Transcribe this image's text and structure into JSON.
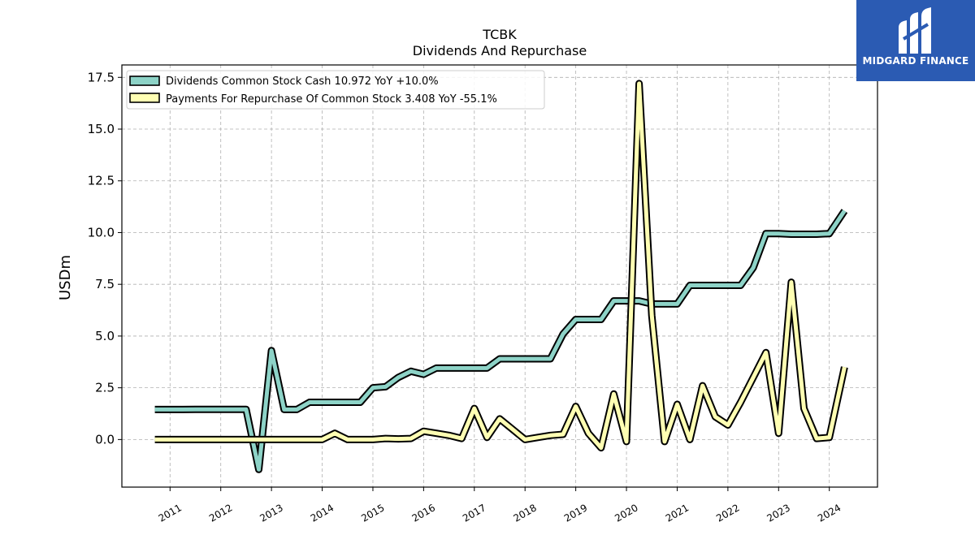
{
  "chart_data": {
    "type": "line",
    "title": "TCBK",
    "subtitle": "Dividends And Repurchase",
    "ylabel": "USDm",
    "xlim": [
      2010.05,
      2024.95
    ],
    "ylim": [
      -2.3,
      18.1
    ],
    "yticks": [
      0.0,
      2.5,
      5.0,
      7.5,
      10.0,
      12.5,
      15.0,
      17.5
    ],
    "ytick_labels": [
      "0.0",
      "2.5",
      "5.0",
      "7.5",
      "10.0",
      "12.5",
      "15.0",
      "17.5"
    ],
    "xticks": [
      2011,
      2012,
      2013,
      2014,
      2015,
      2016,
      2017,
      2018,
      2019,
      2020,
      2021,
      2022,
      2023,
      2024
    ],
    "xtick_labels": [
      "2011",
      "2012",
      "2013",
      "2014",
      "2015",
      "2016",
      "2017",
      "2018",
      "2019",
      "2020",
      "2021",
      "2022",
      "2023",
      "2024"
    ],
    "grid": true,
    "legend_position": "top-left",
    "series": [
      {
        "name": "Dividends Common Stock Cash",
        "legend_label": "Dividends Common Stock Cash  10.972 YoY +10.0%",
        "color": "#8dd3c7",
        "x": [
          2010.7,
          2011.0,
          2011.25,
          2011.5,
          2011.75,
          2012.0,
          2012.25,
          2012.5,
          2012.75,
          2013.0,
          2013.25,
          2013.5,
          2013.75,
          2014.0,
          2014.25,
          2014.5,
          2014.75,
          2015.0,
          2015.25,
          2015.5,
          2015.75,
          2016.0,
          2016.25,
          2016.5,
          2016.75,
          2017.0,
          2017.25,
          2017.5,
          2017.75,
          2018.0,
          2018.25,
          2018.5,
          2018.75,
          2019.0,
          2019.25,
          2019.5,
          2019.75,
          2020.0,
          2020.25,
          2020.5,
          2020.75,
          2021.0,
          2021.25,
          2021.5,
          2021.75,
          2022.0,
          2022.25,
          2022.5,
          2022.75,
          2023.0,
          2023.25,
          2023.5,
          2023.75,
          2024.0,
          2024.3
        ],
        "values": [
          1.45,
          1.45,
          1.45,
          1.46,
          1.46,
          1.46,
          1.46,
          1.46,
          -1.45,
          4.3,
          1.45,
          1.45,
          1.8,
          1.8,
          1.8,
          1.8,
          1.8,
          2.5,
          2.55,
          3.0,
          3.3,
          3.15,
          3.45,
          3.45,
          3.45,
          3.45,
          3.45,
          3.9,
          3.9,
          3.9,
          3.9,
          3.9,
          5.1,
          5.8,
          5.8,
          5.8,
          6.7,
          6.7,
          6.7,
          6.55,
          6.55,
          6.55,
          7.45,
          7.45,
          7.45,
          7.45,
          7.45,
          8.3,
          9.95,
          9.95,
          9.92,
          9.92,
          9.92,
          9.95,
          11.05
        ]
      },
      {
        "name": "Payments For Repurchase Of Common Stock",
        "legend_label": "Payments For Repurchase Of Common Stock  3.408 YoY -55.1%",
        "color": "#ffffb3",
        "x": [
          2010.7,
          2011.0,
          2011.25,
          2011.5,
          2011.75,
          2012.0,
          2012.25,
          2012.5,
          2012.75,
          2013.0,
          2013.25,
          2013.5,
          2013.75,
          2014.0,
          2014.25,
          2014.5,
          2014.75,
          2015.0,
          2015.25,
          2015.5,
          2015.75,
          2016.0,
          2016.25,
          2016.5,
          2016.75,
          2017.0,
          2017.25,
          2017.5,
          2017.75,
          2018.0,
          2018.25,
          2018.5,
          2018.75,
          2019.0,
          2019.25,
          2019.5,
          2019.75,
          2020.0,
          2020.25,
          2020.5,
          2020.75,
          2021.0,
          2021.25,
          2021.5,
          2021.75,
          2022.0,
          2022.25,
          2022.5,
          2022.75,
          2023.0,
          2023.25,
          2023.5,
          2023.75,
          2024.0,
          2024.3
        ],
        "values": [
          0.0,
          0.0,
          0.0,
          0.0,
          0.0,
          0.0,
          0.0,
          0.0,
          0.0,
          0.0,
          0.0,
          0.0,
          0.0,
          0.0,
          0.3,
          0.0,
          0.0,
          0.0,
          0.05,
          0.03,
          0.05,
          0.4,
          0.3,
          0.2,
          0.05,
          1.5,
          0.1,
          1.0,
          0.5,
          0.0,
          0.1,
          0.2,
          0.25,
          1.6,
          0.3,
          -0.4,
          2.2,
          -0.1,
          17.2,
          6.0,
          -0.1,
          1.7,
          0.0,
          2.6,
          1.1,
          0.7,
          1.8,
          3.0,
          4.2,
          0.3,
          7.6,
          1.5,
          0.05,
          0.1,
          3.5
        ]
      }
    ]
  },
  "logo": {
    "text": "MIDGARD FINANCE"
  }
}
